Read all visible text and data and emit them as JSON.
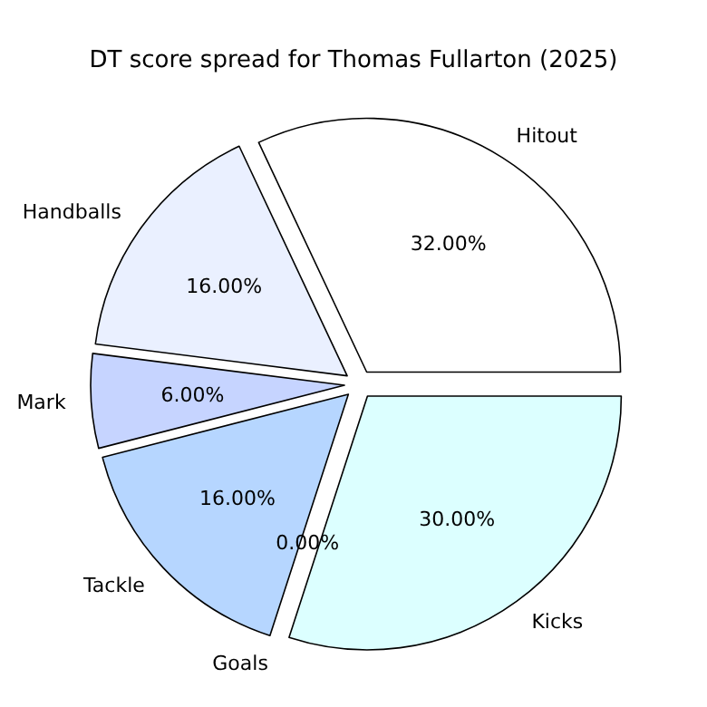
{
  "chart_data": {
    "type": "pie",
    "title": "DT score spread for Thomas Fullarton (2025)",
    "categories": [
      "Hitout",
      "Handballs",
      "Mark",
      "Tackle",
      "Goals",
      "Kicks"
    ],
    "values": [
      32,
      16,
      6,
      16,
      0,
      30
    ],
    "value_labels": [
      "32.00%",
      "16.00%",
      "6.00%",
      "16.00%",
      "0.00%",
      "30.00%"
    ],
    "colors": [
      "#ffffff",
      "#eaf0ff",
      "#c6d4ff",
      "#b6d6ff",
      "#c0e8ff",
      "#dcffff"
    ],
    "legend": false
  }
}
